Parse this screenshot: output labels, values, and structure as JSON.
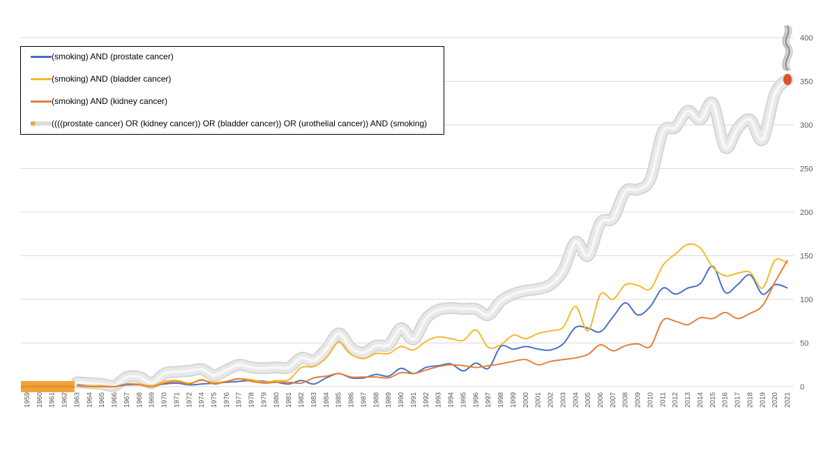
{
  "chart_data": {
    "type": "line",
    "title": "",
    "xlabel": "",
    "ylabel": "",
    "ylim": [
      0,
      400
    ],
    "yticks": [
      0,
      50,
      100,
      150,
      200,
      250,
      300,
      350,
      400
    ],
    "y_axis_position": "right",
    "grid": true,
    "legend_position": "top-left",
    "categories": [
      "1959",
      "1960",
      "1961",
      "1962",
      "1963",
      "1964",
      "1965",
      "1966",
      "1967",
      "1968",
      "1969",
      "1970",
      "1971",
      "1972",
      "1974",
      "1975",
      "1976",
      "1977",
      "1978",
      "1979",
      "1980",
      "1981",
      "1982",
      "1983",
      "1984",
      "1985",
      "1986",
      "1987",
      "1988",
      "1989",
      "1990",
      "1991",
      "1992",
      "1993",
      "1994",
      "1995",
      "1996",
      "1997",
      "1998",
      "1999",
      "2000",
      "2001",
      "2002",
      "2003",
      "2004",
      "2005",
      "2006",
      "2007",
      "2008",
      "2009",
      "2010",
      "2011",
      "2012",
      "2013",
      "2014",
      "2015",
      "2016",
      "2017",
      "2018",
      "2019",
      "2020",
      "2021"
    ],
    "series": [
      {
        "name": "(smoking) AND (prostate cancer)",
        "color": "#4472c4",
        "style": "line",
        "values": [
          null,
          null,
          null,
          null,
          2,
          1,
          1,
          0,
          2,
          2,
          1,
          3,
          4,
          2,
          3,
          4,
          5,
          6,
          7,
          6,
          5,
          3,
          7,
          3,
          10,
          15,
          10,
          10,
          14,
          12,
          21,
          15,
          22,
          24,
          26,
          18,
          27,
          21,
          46,
          43,
          46,
          43,
          42,
          49,
          68,
          67,
          63,
          80,
          96,
          82,
          92,
          113,
          106,
          113,
          118,
          138,
          108,
          117,
          128,
          106,
          117,
          113
        ]
      },
      {
        "name": "(smoking) AND (bladder cancer)",
        "color": "#f4b92c",
        "style": "line",
        "values": [
          null,
          null,
          null,
          null,
          1,
          1,
          1,
          0,
          3,
          3,
          1,
          6,
          7,
          4,
          7,
          5,
          6,
          9,
          8,
          5,
          7,
          8,
          22,
          23,
          33,
          51,
          37,
          32,
          38,
          38,
          46,
          42,
          52,
          57,
          55,
          53,
          65,
          45,
          48,
          59,
          55,
          61,
          64,
          68,
          92,
          64,
          106,
          100,
          117,
          116,
          112,
          139,
          152,
          163,
          159,
          137,
          127,
          130,
          131,
          113,
          145,
          141
        ]
      },
      {
        "name": "(smoking) AND (kidney cancer)",
        "color": "#e67e36",
        "style": "line",
        "values": [
          null,
          null,
          null,
          null,
          1,
          0,
          0,
          0,
          3,
          2,
          0,
          4,
          6,
          3,
          8,
          3,
          6,
          9,
          6,
          4,
          5,
          5,
          4,
          10,
          12,
          15,
          11,
          11,
          11,
          10,
          16,
          15,
          19,
          23,
          25,
          24,
          22,
          24,
          26,
          29,
          31,
          25,
          29,
          31,
          33,
          37,
          48,
          41,
          47,
          49,
          46,
          76,
          75,
          71,
          79,
          78,
          85,
          78,
          84,
          93,
          120,
          145
        ]
      },
      {
        "name": "((((prostate cancer) OR (kidney cancer)) OR (bladder cancer)) OR (urothelial cancer)) AND (smoking)",
        "color": "#e8e8e8",
        "style": "cigarette",
        "stub_color": "#f0a43a",
        "ember_color": "#d9542b",
        "values": [
          null,
          null,
          null,
          null,
          5,
          4,
          3,
          1,
          11,
          11,
          4,
          15,
          17,
          18,
          20,
          13,
          19,
          25,
          22,
          21,
          22,
          22,
          33,
          30,
          43,
          61,
          44,
          39,
          47,
          48,
          67,
          54,
          78,
          88,
          90,
          89,
          89,
          82,
          98,
          106,
          110,
          112,
          117,
          133,
          166,
          150,
          188,
          193,
          224,
          226,
          238,
          292,
          297,
          316,
          306,
          325,
          274,
          296,
          306,
          283,
          336,
          352
        ]
      }
    ]
  }
}
